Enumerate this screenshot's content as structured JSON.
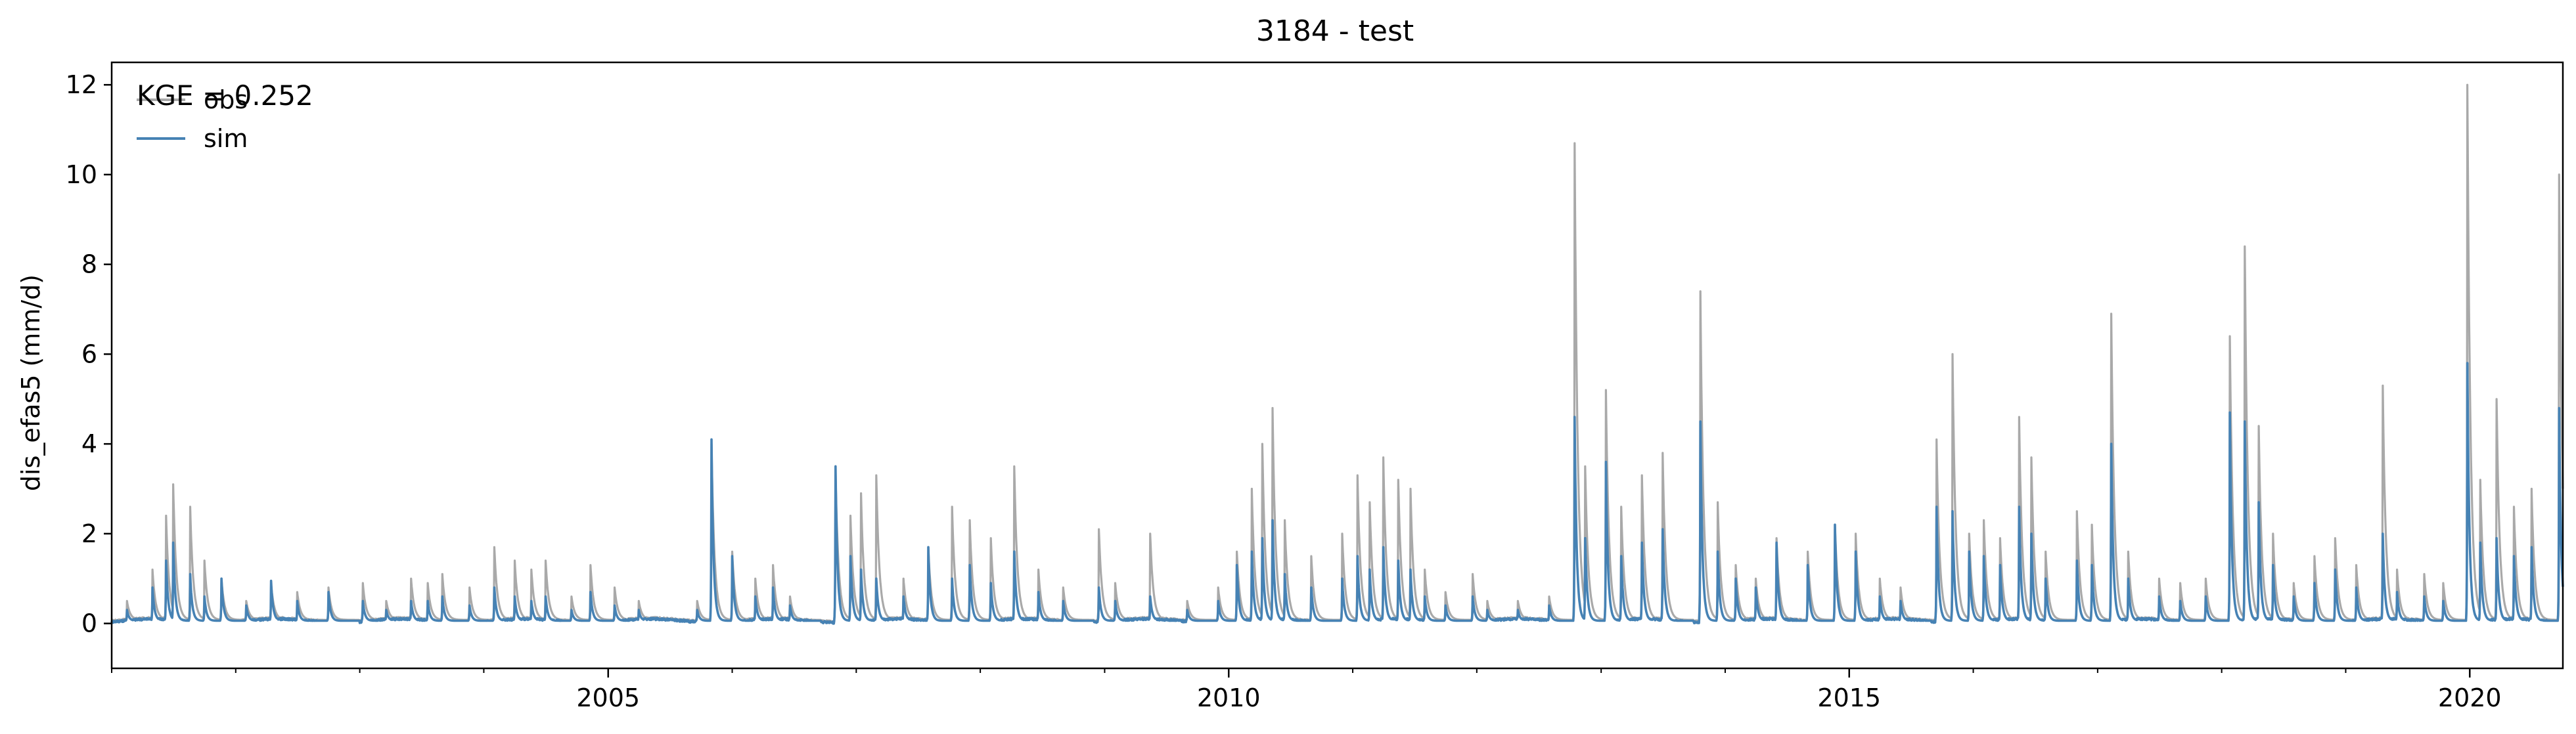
{
  "chart_data": {
    "type": "line",
    "title": "3184 - test",
    "xlabel": "",
    "ylabel": "dis_efas5 (mm/d)",
    "annotation": "KGE = 0.252",
    "x_axis": {
      "scale": "time",
      "range": [
        "2001-01-01",
        "2020-10-01"
      ],
      "ticks": [
        "2005-01-01",
        "2010-01-01",
        "2015-01-01",
        "2020-01-01"
      ],
      "tick_labels": [
        "2005",
        "2010",
        "2015",
        "2020"
      ],
      "minor_ticks": "yearly"
    },
    "ylim": [
      -1.0,
      12.5
    ],
    "y_ticks": [
      0,
      2,
      4,
      6,
      8,
      10,
      12
    ],
    "y_tick_labels": [
      "0",
      "2",
      "4",
      "6",
      "8",
      "10",
      "12"
    ],
    "grid": false,
    "legend": {
      "position": "top-left",
      "entries": [
        "obs",
        "sim"
      ]
    },
    "colors": {
      "obs": "#a9a9a9",
      "sim": "#4682b4"
    },
    "baseflow": {
      "obs": 0.08,
      "sim": 0.06
    },
    "series": [
      {
        "name": "obs",
        "peaks": [
          [
            "2001-02-15",
            0.5
          ],
          [
            "2001-05-01",
            1.2
          ],
          [
            "2001-06-10",
            2.4
          ],
          [
            "2001-07-01",
            3.1
          ],
          [
            "2001-08-20",
            2.6
          ],
          [
            "2001-10-01",
            1.4
          ],
          [
            "2001-11-20",
            1.0
          ],
          [
            "2002-02-01",
            0.5
          ],
          [
            "2002-04-15",
            0.9
          ],
          [
            "2002-07-01",
            0.7
          ],
          [
            "2002-10-01",
            0.8
          ],
          [
            "2003-01-10",
            0.9
          ],
          [
            "2003-03-20",
            0.5
          ],
          [
            "2003-06-01",
            1.0
          ],
          [
            "2003-07-20",
            0.9
          ],
          [
            "2003-09-01",
            1.1
          ],
          [
            "2003-11-20",
            0.8
          ],
          [
            "2004-02-01",
            1.7
          ],
          [
            "2004-04-01",
            1.4
          ],
          [
            "2004-05-20",
            1.2
          ],
          [
            "2004-07-01",
            1.4
          ],
          [
            "2004-09-15",
            0.6
          ],
          [
            "2004-11-10",
            1.3
          ],
          [
            "2005-01-20",
            0.8
          ],
          [
            "2005-04-01",
            0.5
          ],
          [
            "2005-09-20",
            0.5
          ],
          [
            "2005-11-01",
            4.0
          ],
          [
            "2006-01-01",
            1.6
          ],
          [
            "2006-03-10",
            1.0
          ],
          [
            "2006-05-01",
            1.3
          ],
          [
            "2006-06-20",
            0.6
          ],
          [
            "2006-11-01",
            3.4
          ],
          [
            "2006-12-15",
            2.4
          ],
          [
            "2007-01-15",
            2.9
          ],
          [
            "2007-03-01",
            3.3
          ],
          [
            "2007-05-20",
            1.0
          ],
          [
            "2007-08-01",
            1.7
          ],
          [
            "2007-10-10",
            2.6
          ],
          [
            "2007-12-01",
            2.3
          ],
          [
            "2008-02-01",
            1.9
          ],
          [
            "2008-04-10",
            3.5
          ],
          [
            "2008-06-20",
            1.2
          ],
          [
            "2008-09-01",
            0.8
          ],
          [
            "2008-12-15",
            2.1
          ],
          [
            "2009-02-01",
            0.9
          ],
          [
            "2009-05-15",
            2.0
          ],
          [
            "2009-09-01",
            0.5
          ],
          [
            "2009-12-01",
            0.8
          ],
          [
            "2010-01-25",
            1.6
          ],
          [
            "2010-03-10",
            3.0
          ],
          [
            "2010-04-10",
            4.0
          ],
          [
            "2010-05-10",
            4.8
          ],
          [
            "2010-06-15",
            2.3
          ],
          [
            "2010-09-01",
            1.5
          ],
          [
            "2010-12-01",
            2.0
          ],
          [
            "2011-01-15",
            3.3
          ],
          [
            "2011-02-20",
            2.7
          ],
          [
            "2011-04-01",
            3.7
          ],
          [
            "2011-05-15",
            3.2
          ],
          [
            "2011-06-20",
            3.0
          ],
          [
            "2011-08-01",
            1.2
          ],
          [
            "2011-10-01",
            0.7
          ],
          [
            "2011-12-20",
            1.1
          ],
          [
            "2012-02-01",
            0.5
          ],
          [
            "2012-05-01",
            0.5
          ],
          [
            "2012-08-01",
            0.6
          ],
          [
            "2012-10-15",
            10.7
          ],
          [
            "2012-11-15",
            3.5
          ],
          [
            "2013-01-15",
            5.2
          ],
          [
            "2013-03-01",
            2.6
          ],
          [
            "2013-05-01",
            3.3
          ],
          [
            "2013-07-01",
            3.8
          ],
          [
            "2013-10-20",
            7.4
          ],
          [
            "2013-12-10",
            2.7
          ],
          [
            "2014-02-01",
            1.3
          ],
          [
            "2014-04-01",
            1.0
          ],
          [
            "2014-06-01",
            1.9
          ],
          [
            "2014-09-01",
            1.6
          ],
          [
            "2014-11-20",
            2.2
          ],
          [
            "2015-01-20",
            2.0
          ],
          [
            "2015-04-01",
            1.0
          ],
          [
            "2015-06-01",
            0.8
          ],
          [
            "2015-09-15",
            4.1
          ],
          [
            "2015-11-01",
            6.0
          ],
          [
            "2015-12-20",
            2.0
          ],
          [
            "2016-02-01",
            2.3
          ],
          [
            "2016-03-20",
            1.9
          ],
          [
            "2016-05-15",
            4.6
          ],
          [
            "2016-06-20",
            3.7
          ],
          [
            "2016-08-01",
            1.6
          ],
          [
            "2016-11-01",
            2.5
          ],
          [
            "2016-12-15",
            2.2
          ],
          [
            "2017-02-10",
            6.9
          ],
          [
            "2017-04-01",
            1.6
          ],
          [
            "2017-07-01",
            1.0
          ],
          [
            "2017-09-01",
            0.9
          ],
          [
            "2017-11-15",
            1.0
          ],
          [
            "2018-01-25",
            6.4
          ],
          [
            "2018-03-10",
            8.4
          ],
          [
            "2018-04-20",
            4.4
          ],
          [
            "2018-06-01",
            2.0
          ],
          [
            "2018-08-01",
            0.9
          ],
          [
            "2018-10-01",
            1.5
          ],
          [
            "2018-12-01",
            1.9
          ],
          [
            "2019-02-01",
            1.3
          ],
          [
            "2019-04-20",
            5.3
          ],
          [
            "2019-06-01",
            1.2
          ],
          [
            "2019-08-20",
            1.1
          ],
          [
            "2019-10-15",
            0.9
          ],
          [
            "2019-12-25",
            12.0
          ],
          [
            "2020-02-01",
            3.2
          ],
          [
            "2020-03-20",
            5.0
          ],
          [
            "2020-05-10",
            2.6
          ],
          [
            "2020-07-01",
            3.0
          ],
          [
            "2020-09-20",
            10.0
          ]
        ]
      },
      {
        "name": "sim",
        "peaks": [
          [
            "2001-02-15",
            0.3
          ],
          [
            "2001-05-01",
            0.8
          ],
          [
            "2001-06-10",
            1.4
          ],
          [
            "2001-07-01",
            1.8
          ],
          [
            "2001-08-20",
            1.1
          ],
          [
            "2001-10-01",
            0.6
          ],
          [
            "2001-11-20",
            1.0
          ],
          [
            "2002-02-01",
            0.4
          ],
          [
            "2002-04-15",
            0.95
          ],
          [
            "2002-07-01",
            0.5
          ],
          [
            "2002-10-01",
            0.7
          ],
          [
            "2003-01-10",
            0.5
          ],
          [
            "2003-03-20",
            0.3
          ],
          [
            "2003-06-01",
            0.5
          ],
          [
            "2003-07-20",
            0.5
          ],
          [
            "2003-09-01",
            0.6
          ],
          [
            "2003-11-20",
            0.4
          ],
          [
            "2004-02-01",
            0.8
          ],
          [
            "2004-04-01",
            0.6
          ],
          [
            "2004-05-20",
            0.5
          ],
          [
            "2004-07-01",
            0.6
          ],
          [
            "2004-09-15",
            0.3
          ],
          [
            "2004-11-10",
            0.7
          ],
          [
            "2005-01-20",
            0.4
          ],
          [
            "2005-04-01",
            0.3
          ],
          [
            "2005-09-20",
            0.3
          ],
          [
            "2005-11-01",
            4.1
          ],
          [
            "2006-01-01",
            1.5
          ],
          [
            "2006-03-10",
            0.6
          ],
          [
            "2006-05-01",
            0.8
          ],
          [
            "2006-06-20",
            0.4
          ],
          [
            "2006-11-01",
            3.5
          ],
          [
            "2006-12-15",
            1.5
          ],
          [
            "2007-01-15",
            1.2
          ],
          [
            "2007-03-01",
            1.0
          ],
          [
            "2007-05-20",
            0.6
          ],
          [
            "2007-08-01",
            1.7
          ],
          [
            "2007-10-10",
            1.0
          ],
          [
            "2007-12-01",
            1.3
          ],
          [
            "2008-02-01",
            0.9
          ],
          [
            "2008-04-10",
            1.6
          ],
          [
            "2008-06-20",
            0.7
          ],
          [
            "2008-09-01",
            0.5
          ],
          [
            "2008-12-15",
            0.8
          ],
          [
            "2009-02-01",
            0.5
          ],
          [
            "2009-05-15",
            0.6
          ],
          [
            "2009-09-01",
            0.3
          ],
          [
            "2009-12-01",
            0.5
          ],
          [
            "2010-01-25",
            1.3
          ],
          [
            "2010-03-10",
            1.6
          ],
          [
            "2010-04-10",
            1.9
          ],
          [
            "2010-05-10",
            2.3
          ],
          [
            "2010-06-15",
            1.1
          ],
          [
            "2010-09-01",
            0.8
          ],
          [
            "2010-12-01",
            1.0
          ],
          [
            "2011-01-15",
            1.5
          ],
          [
            "2011-02-20",
            1.2
          ],
          [
            "2011-04-01",
            1.7
          ],
          [
            "2011-05-15",
            1.4
          ],
          [
            "2011-06-20",
            1.2
          ],
          [
            "2011-08-01",
            0.6
          ],
          [
            "2011-10-01",
            0.4
          ],
          [
            "2011-12-20",
            0.6
          ],
          [
            "2012-02-01",
            0.3
          ],
          [
            "2012-05-01",
            0.3
          ],
          [
            "2012-08-01",
            0.4
          ],
          [
            "2012-10-15",
            4.6
          ],
          [
            "2012-11-15",
            1.9
          ],
          [
            "2013-01-15",
            3.6
          ],
          [
            "2013-03-01",
            1.5
          ],
          [
            "2013-05-01",
            1.8
          ],
          [
            "2013-07-01",
            2.1
          ],
          [
            "2013-10-20",
            4.5
          ],
          [
            "2013-12-10",
            1.6
          ],
          [
            "2014-02-01",
            1.0
          ],
          [
            "2014-04-01",
            0.8
          ],
          [
            "2014-06-01",
            1.8
          ],
          [
            "2014-09-01",
            1.3
          ],
          [
            "2014-11-20",
            2.2
          ],
          [
            "2015-01-20",
            1.6
          ],
          [
            "2015-04-01",
            0.6
          ],
          [
            "2015-06-01",
            0.5
          ],
          [
            "2015-09-15",
            2.6
          ],
          [
            "2015-11-01",
            2.5
          ],
          [
            "2015-12-20",
            1.6
          ],
          [
            "2016-02-01",
            1.5
          ],
          [
            "2016-03-20",
            1.3
          ],
          [
            "2016-05-15",
            2.6
          ],
          [
            "2016-06-20",
            2.0
          ],
          [
            "2016-08-01",
            1.0
          ],
          [
            "2016-11-01",
            1.4
          ],
          [
            "2016-12-15",
            1.3
          ],
          [
            "2017-02-10",
            4.0
          ],
          [
            "2017-04-01",
            1.0
          ],
          [
            "2017-07-01",
            0.6
          ],
          [
            "2017-09-01",
            0.5
          ],
          [
            "2017-11-15",
            0.6
          ],
          [
            "2018-01-25",
            4.7
          ],
          [
            "2018-03-10",
            4.5
          ],
          [
            "2018-04-20",
            2.7
          ],
          [
            "2018-06-01",
            1.3
          ],
          [
            "2018-08-01",
            0.6
          ],
          [
            "2018-10-01",
            0.9
          ],
          [
            "2018-12-01",
            1.2
          ],
          [
            "2019-02-01",
            0.8
          ],
          [
            "2019-04-20",
            2.0
          ],
          [
            "2019-06-01",
            0.7
          ],
          [
            "2019-08-20",
            0.6
          ],
          [
            "2019-10-15",
            0.5
          ],
          [
            "2019-12-25",
            5.8
          ],
          [
            "2020-02-01",
            1.8
          ],
          [
            "2020-03-20",
            1.9
          ],
          [
            "2020-05-10",
            1.5
          ],
          [
            "2020-07-01",
            1.7
          ],
          [
            "2020-09-20",
            4.8
          ]
        ]
      }
    ]
  }
}
